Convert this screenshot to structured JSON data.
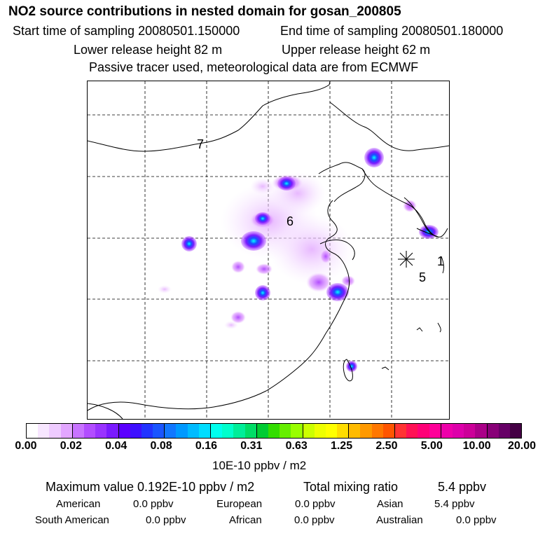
{
  "header": {
    "title": "NO2 source contributions in nested domain for gosan_200805",
    "start": "Start time of sampling 20080501.150000",
    "end": "End time of sampling 20080501.180000",
    "lower": "Lower release height   82 m",
    "upper": "Upper release height   62 m",
    "note": "Passive tracer used, meteorological data are from ECMWF"
  },
  "map": {
    "zones": [
      "7",
      "6",
      "5",
      "1"
    ],
    "receptor_marker": "asterisk"
  },
  "colorbar": {
    "ticks": [
      "0.00",
      "0.02",
      "0.04",
      "0.08",
      "0.16",
      "0.31",
      "0.63",
      "1.25",
      "2.50",
      "5.00",
      "10.00",
      "20.00"
    ],
    "colors": [
      "#ffffff",
      "#f7e6ff",
      "#eecbff",
      "#e2a6ff",
      "#c873ff",
      "#b24dff",
      "#9933ff",
      "#7a1aff",
      "#5b00ff",
      "#3e10ff",
      "#2233ff",
      "#1a55ff",
      "#1177ff",
      "#0099ff",
      "#00bbff",
      "#00ddff",
      "#00ffee",
      "#00ffcc",
      "#00ee99",
      "#00dd66",
      "#00cc33",
      "#33dd00",
      "#66ee00",
      "#99ff00",
      "#ccff00",
      "#eeff00",
      "#ffff00",
      "#ffdd00",
      "#ffbb00",
      "#ff9900",
      "#ff7700",
      "#ff5500",
      "#ff3333",
      "#ff1155",
      "#ff0077",
      "#ff0099",
      "#ee00aa",
      "#dd00aa",
      "#cc0099",
      "#aa0088",
      "#880077",
      "#660066",
      "#440044"
    ],
    "units": "10E-10 ppbv / m2"
  },
  "footer": {
    "max": "Maximum value  0.192E-10 ppbv / m2",
    "total_label": "Total mixing ratio",
    "total_value": "5.4 ppbv",
    "regions": [
      {
        "name": "American",
        "value": "0.0 ppbv"
      },
      {
        "name": "European",
        "value": "0.0 ppbv"
      },
      {
        "name": "Asian",
        "value": "5.4 ppbv"
      },
      {
        "name": "South American",
        "value": "0.0 ppbv"
      },
      {
        "name": "African",
        "value": "0.0 ppbv"
      },
      {
        "name": "Australian",
        "value": "0.0 ppbv"
      }
    ]
  }
}
